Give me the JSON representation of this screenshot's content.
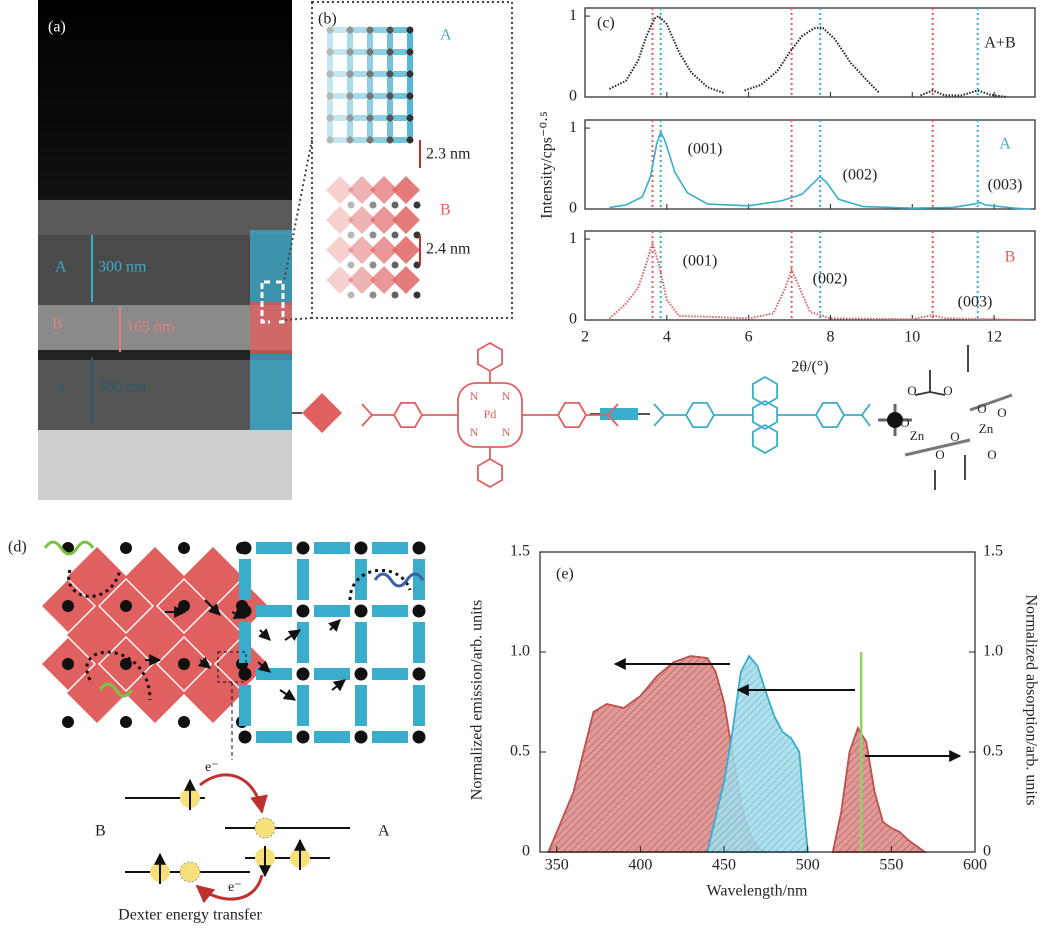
{
  "panel_a": {
    "label": "(a)",
    "layers": [
      {
        "name": "A",
        "thickness": "300 nm"
      },
      {
        "name": "B",
        "thickness": "165 nm"
      },
      {
        "name": "A",
        "thickness": "300 nm"
      }
    ]
  },
  "panel_b": {
    "label": "(b)",
    "lattices": [
      {
        "name": "A",
        "spacing": "2.3 nm"
      },
      {
        "name": "B",
        "spacing": "2.4 nm"
      }
    ]
  },
  "molecules": {
    "porphyrin_atoms": [
      "N",
      "N",
      "N",
      "N",
      "Pd"
    ],
    "zn_cluster_atoms": [
      "O",
      "O",
      "O",
      "O",
      "O",
      "Zn",
      "O",
      "Zn",
      "O",
      "O"
    ]
  },
  "panel_d": {
    "label": "(d)",
    "left": "B",
    "right": "A",
    "electrons": [
      "e⁻",
      "e⁻"
    ],
    "caption": "Dexter energy transfer"
  },
  "chart_data": [
    {
      "type": "line",
      "label": "(c)",
      "annotations": [
        "A+B"
      ],
      "color": "#222222",
      "line_style": "dotted",
      "xlim": [
        2,
        13
      ],
      "xticks": [
        2,
        4,
        6,
        8,
        10,
        12
      ],
      "ylim": [
        0,
        1.1
      ],
      "yticks": [
        0,
        1
      ],
      "x": [
        2.6,
        3.0,
        3.3,
        3.5,
        3.7,
        3.8,
        4.0,
        4.3,
        4.6,
        5.0,
        5.4,
        5.6,
        5.9,
        6.3,
        6.7,
        7.0,
        7.3,
        7.6,
        7.8,
        8.1,
        8.5,
        8.9,
        9.2,
        9.7,
        10.2,
        10.5,
        10.8,
        11.2,
        11.6,
        11.9,
        12.3
      ],
      "values": [
        0.1,
        0.2,
        0.45,
        0.75,
        0.97,
        1.0,
        0.9,
        0.55,
        0.3,
        0.12,
        0.05,
        null,
        0.08,
        0.15,
        0.32,
        0.55,
        0.75,
        0.85,
        0.86,
        0.72,
        0.42,
        0.2,
        0.05,
        null,
        0.02,
        0.08,
        0.02,
        0.02,
        0.08,
        0.03,
        0
      ],
      "ref_lines": [
        {
          "x": 3.65,
          "color": "#e06060"
        },
        {
          "x": 3.85,
          "color": "#3aaccc"
        },
        {
          "x": 7.05,
          "color": "#e06060"
        },
        {
          "x": 7.75,
          "color": "#3aaccc"
        },
        {
          "x": 10.5,
          "color": "#e06060"
        },
        {
          "x": 11.6,
          "color": "#3aaccc"
        }
      ]
    },
    {
      "type": "line",
      "ylabel": "Intensity/cps⁻⁰·⁵",
      "annotations": [
        "(001)",
        "(002)",
        "(003)",
        "A"
      ],
      "color": "#3aaccc",
      "line_style": "solid",
      "xlim": [
        2,
        13
      ],
      "xticks": [
        2,
        4,
        6,
        8,
        10,
        12
      ],
      "ylim": [
        0,
        1.1
      ],
      "yticks": [
        0,
        1
      ],
      "x": [
        2.6,
        3.0,
        3.4,
        3.6,
        3.75,
        3.85,
        3.95,
        4.2,
        4.5,
        5.0,
        6.0,
        6.8,
        7.3,
        7.6,
        7.75,
        7.9,
        8.2,
        8.8,
        10.0,
        11.0,
        11.5,
        11.65,
        11.8,
        12.5,
        12.9
      ],
      "values": [
        0.02,
        0.05,
        0.15,
        0.4,
        0.8,
        0.95,
        0.85,
        0.45,
        0.2,
        0.06,
        0.04,
        0.1,
        0.18,
        0.33,
        0.4,
        0.33,
        0.12,
        0.03,
        0.01,
        0.02,
        0.06,
        0.08,
        0.05,
        0.01,
        0
      ],
      "ref_lines": [
        {
          "x": 3.65,
          "color": "#e06060"
        },
        {
          "x": 3.85,
          "color": "#3aaccc"
        },
        {
          "x": 7.05,
          "color": "#e06060"
        },
        {
          "x": 7.75,
          "color": "#3aaccc"
        },
        {
          "x": 10.5,
          "color": "#e06060"
        },
        {
          "x": 11.6,
          "color": "#3aaccc"
        }
      ]
    },
    {
      "type": "line",
      "xlabel": "2θ/(°)",
      "annotations": [
        "(001)",
        "(002)",
        "(003)",
        "B"
      ],
      "color": "#e06060",
      "line_style": "dotted",
      "xlim": [
        2,
        13
      ],
      "xticks": [
        2,
        4,
        6,
        8,
        10,
        12
      ],
      "ylim": [
        0,
        1.1
      ],
      "yticks": [
        0,
        1
      ],
      "x": [
        2.6,
        3.0,
        3.3,
        3.5,
        3.65,
        3.8,
        4.0,
        4.3,
        5.0,
        6.0,
        6.6,
        6.9,
        7.05,
        7.2,
        7.5,
        8.0,
        10.0,
        10.5,
        10.8,
        12.0,
        12.9
      ],
      "values": [
        0.02,
        0.2,
        0.4,
        0.7,
        0.95,
        0.7,
        0.25,
        0.05,
        0.04,
        0.02,
        0.08,
        0.4,
        0.62,
        0.45,
        0.1,
        0.02,
        0.01,
        0.06,
        0.02,
        0.01,
        0
      ],
      "ref_lines": [
        {
          "x": 3.65,
          "color": "#e06060"
        },
        {
          "x": 3.85,
          "color": "#3aaccc"
        },
        {
          "x": 7.05,
          "color": "#e06060"
        },
        {
          "x": 7.75,
          "color": "#3aaccc"
        },
        {
          "x": 10.5,
          "color": "#e06060"
        },
        {
          "x": 11.6,
          "color": "#3aaccc"
        }
      ]
    },
    {
      "type": "area",
      "label": "(e)",
      "xlabel": "Wavelength/nm",
      "ylabel": "Normalized emission/arb. units",
      "y2label": "Normalized absorption/arb. units",
      "xlim": [
        340,
        600
      ],
      "xticks": [
        350,
        400,
        450,
        500,
        550,
        600
      ],
      "ylim": [
        0,
        1.5
      ],
      "yticks": [
        0,
        0.5,
        {
          "value": 1,
          "label": "1.0"
        },
        1.5
      ],
      "y2lim": [
        0,
        1.5
      ],
      "y2ticks": [
        0,
        0.5,
        {
          "value": 1,
          "label": "1.0"
        },
        1.5
      ],
      "series": [
        {
          "color": "#c0504d",
          "fill": "hatch",
          "x": [
            345,
            360,
            372,
            380,
            390,
            400,
            410,
            420,
            430,
            440,
            445,
            450,
            455,
            460,
            465,
            470,
            475
          ],
          "values": [
            0,
            0.3,
            0.7,
            0.74,
            0.72,
            0.78,
            0.88,
            0.95,
            0.98,
            0.97,
            0.9,
            0.75,
            0.5,
            0.25,
            0.1,
            0.02,
            0
          ]
        },
        {
          "color": "#3aaccc",
          "fill": "hatch",
          "x": [
            440,
            450,
            455,
            460,
            465,
            470,
            475,
            480,
            485,
            490,
            495,
            500
          ],
          "values": [
            0,
            0.35,
            0.6,
            0.9,
            0.98,
            0.93,
            0.8,
            0.68,
            0.6,
            0.57,
            0.5,
            0
          ]
        },
        {
          "color": "#c0504d",
          "fill": "hatch",
          "x": [
            515,
            520,
            525,
            530,
            535,
            540,
            545,
            550,
            555,
            560,
            570
          ],
          "values": [
            0,
            0.2,
            0.5,
            0.62,
            0.55,
            0.3,
            0.15,
            0.12,
            0.1,
            0.06,
            0
          ]
        },
        {
          "color": "#8fd16a",
          "fill": "none",
          "x": [
            532,
            532
          ],
          "values": [
            0,
            1
          ]
        }
      ]
    }
  ]
}
